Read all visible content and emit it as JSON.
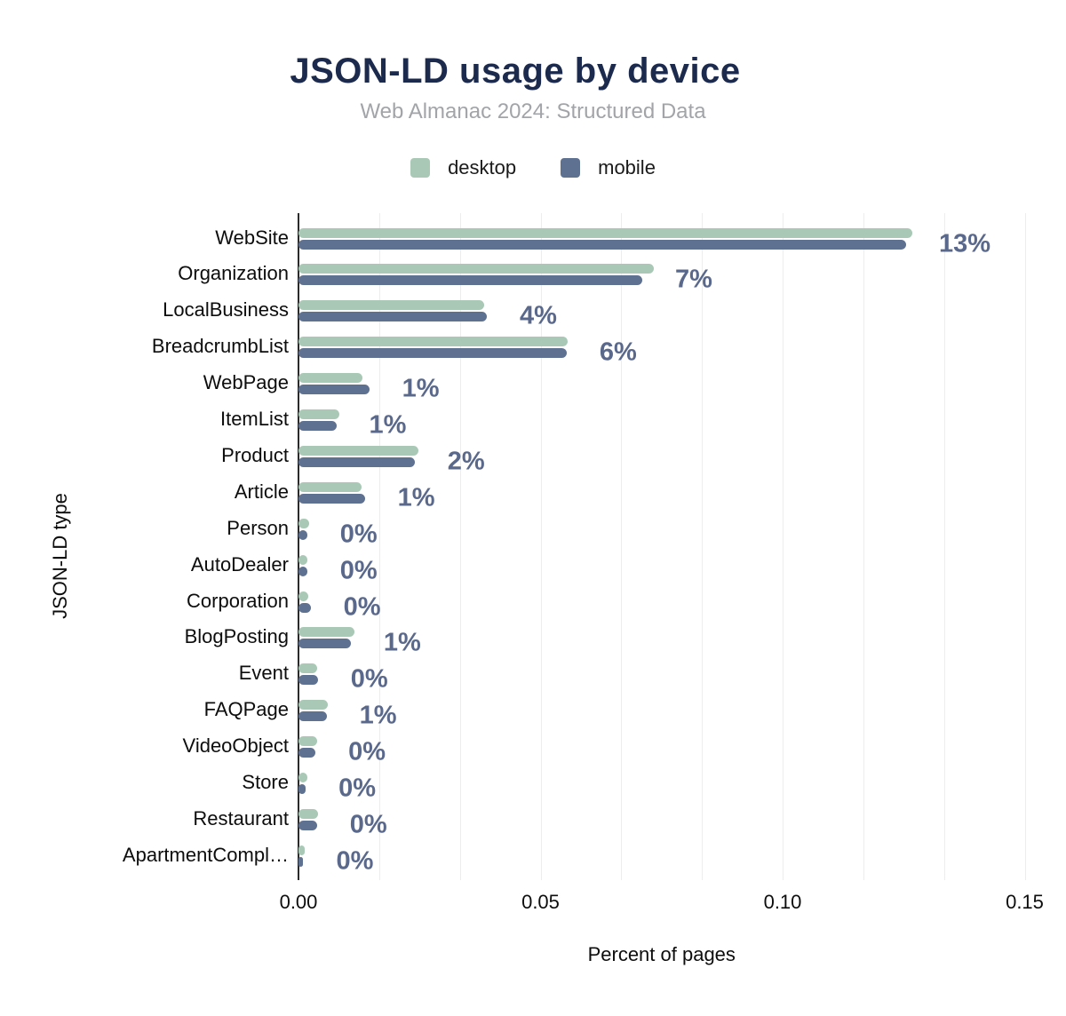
{
  "header": {
    "title": "JSON-LD usage by device",
    "subtitle": "Web Almanac 2024: Structured Data"
  },
  "colors": {
    "desktop": "#a9c9b6",
    "mobile": "#5f7191",
    "value_label": "#59688b",
    "title": "#1c2b4d",
    "subtitle": "#a2a4a8",
    "gridline": "#ededed",
    "axis_line": "#2b2b2b"
  },
  "chart_data": {
    "type": "bar",
    "orientation": "horizontal",
    "title": "JSON-LD usage by device",
    "subtitle": "Web Almanac 2024: Structured Data",
    "xlabel": "Percent of pages",
    "ylabel": "JSON-LD type",
    "xlim": [
      0,
      0.15
    ],
    "grid": "vertical-minor",
    "legend_position": "top-center",
    "categories": [
      "WebSite",
      "Organization",
      "LocalBusiness",
      "BreadcrumbList",
      "WebPage",
      "ItemList",
      "Product",
      "Article",
      "Person",
      "AutoDealer",
      "Corporation",
      "BlogPosting",
      "Event",
      "FAQPage",
      "VideoObject",
      "Store",
      "Restaurant",
      "ApartmentCompl…"
    ],
    "series": [
      {
        "name": "desktop",
        "color": "#a9c9b6",
        "values": [
          0.1268,
          0.0734,
          0.0383,
          0.0556,
          0.0133,
          0.0085,
          0.0248,
          0.013,
          0.0022,
          0.0019,
          0.0021,
          0.0115,
          0.0039,
          0.006,
          0.0038,
          0.0018,
          0.004,
          0.0012
        ]
      },
      {
        "name": "mobile",
        "color": "#5f7191",
        "values": [
          0.1255,
          0.071,
          0.0389,
          0.0554,
          0.0146,
          0.0078,
          0.024,
          0.0137,
          0.0018,
          0.0018,
          0.0025,
          0.0108,
          0.004,
          0.0058,
          0.0035,
          0.0015,
          0.0038,
          0.001
        ]
      }
    ],
    "value_labels": [
      "13%",
      "7%",
      "4%",
      "6%",
      "1%",
      "1%",
      "2%",
      "1%",
      "0%",
      "0%",
      "0%",
      "1%",
      "0%",
      "1%",
      "0%",
      "0%",
      "0%",
      "0%"
    ],
    "x_ticks": [
      {
        "label": "0.00",
        "v": 0.0
      },
      {
        "label": "0.05",
        "v": 0.05
      },
      {
        "label": "0.10",
        "v": 0.1
      },
      {
        "label": "0.15",
        "v": 0.15
      }
    ]
  }
}
